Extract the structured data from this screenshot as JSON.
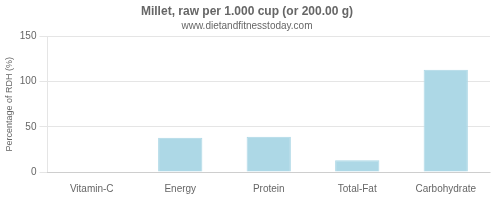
{
  "chart_data": {
    "type": "bar",
    "title": "Millet, raw per 1.000 cup (or 200.00 g)",
    "subtitle": "www.dietandfitnesstoday.com",
    "categories": [
      "Vitamin-C",
      "Energy",
      "Protein",
      "Total-Fat",
      "Carbohydrate"
    ],
    "values": [
      0,
      38,
      39,
      13,
      113
    ],
    "color": "#add8e6",
    "ylabel": "Percentage of RDH (%)",
    "ylim": [
      0,
      150
    ],
    "yticks": [
      0,
      50,
      100,
      150
    ],
    "grid": true
  }
}
